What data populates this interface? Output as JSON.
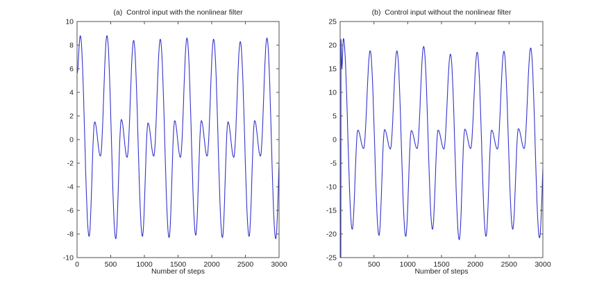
{
  "figure": {
    "background": "#ffffff",
    "frame_color": "#4f4f4f",
    "tick_label_color": "#222222"
  },
  "chart_data": [
    {
      "type": "line",
      "title": "(a)  Control input with the nonlinear filter",
      "xlabel": "Number of steps",
      "xlim": [
        0,
        3000
      ],
      "ylim": [
        -10,
        10
      ],
      "xticks": [
        0,
        500,
        1000,
        1500,
        2000,
        2500,
        3000
      ],
      "yticks": [
        10,
        8,
        6,
        4,
        2,
        0,
        -2,
        -4,
        -6,
        -8,
        -10
      ],
      "grid": false,
      "legend": null,
      "line_color": "#3333cc",
      "series_model": {
        "comment_units": "periodic waveform reconstructed from on-screen extrema, steps vs amplitude",
        "period": 396,
        "first_peak_t": 48,
        "extrema_offsets": {
          "big_min": 0.33,
          "small_max": 0.54,
          "small_min": 0.755
        },
        "big_max": [
          8.8,
          8.8,
          8.4,
          8.5,
          8.6,
          8.5,
          8.3,
          8.6
        ],
        "big_min": [
          -8.2,
          -8.4,
          -8.2,
          -8.3,
          -8.1,
          -8.3,
          -8.2,
          -8.4
        ],
        "small_max": [
          1.5,
          1.7,
          1.4,
          1.6,
          1.6,
          1.5,
          1.6,
          1.6
        ],
        "small_min": [
          -1.4,
          -1.5,
          -1.4,
          -1.5,
          -1.4,
          -1.5,
          -1.4,
          null
        ],
        "prefix_points": [
          [
            0,
            5.6
          ]
        ]
      }
    },
    {
      "type": "line",
      "title": "(b)  Control input without the nonlinear filter",
      "xlabel": "Number of steps",
      "xlim": [
        0,
        3000
      ],
      "ylim": [
        -25,
        25
      ],
      "xticks": [
        0,
        500,
        1000,
        1500,
        2000,
        2500,
        3000
      ],
      "yticks": [
        25,
        20,
        15,
        10,
        5,
        0,
        -5,
        -10,
        -15,
        -20,
        -25
      ],
      "grid": false,
      "legend": null,
      "line_color": "#3333cc",
      "series_model": {
        "comment_units": "same periodic pattern plus initial transient spike spanning -25 to +21 near t=0",
        "period": 396,
        "first_peak_t": 48,
        "extrema_offsets": {
          "big_min": 0.33,
          "small_max": 0.54,
          "small_min": 0.755
        },
        "big_max": [
          21.4,
          18.8,
          18.8,
          19.7,
          18.1,
          18.5,
          18.7,
          19.4
        ],
        "big_min": [
          -19.0,
          -20.3,
          -20.5,
          -19.0,
          -21.2,
          -20.5,
          -19.0,
          -20.8
        ],
        "small_max": [
          2.0,
          2.1,
          1.9,
          2.0,
          2.2,
          2.0,
          2.3,
          2.0
        ],
        "small_min": [
          -1.9,
          -2.0,
          -1.9,
          -2.0,
          -1.9,
          -2.0,
          -1.9,
          null
        ],
        "prefix_points": [
          [
            0,
            -14
          ],
          [
            2,
            -25
          ],
          [
            4,
            -15
          ],
          [
            6,
            -25
          ],
          [
            8,
            -14
          ],
          [
            10,
            -25
          ],
          [
            12,
            21.2
          ],
          [
            26,
            15.2
          ]
        ]
      }
    }
  ]
}
